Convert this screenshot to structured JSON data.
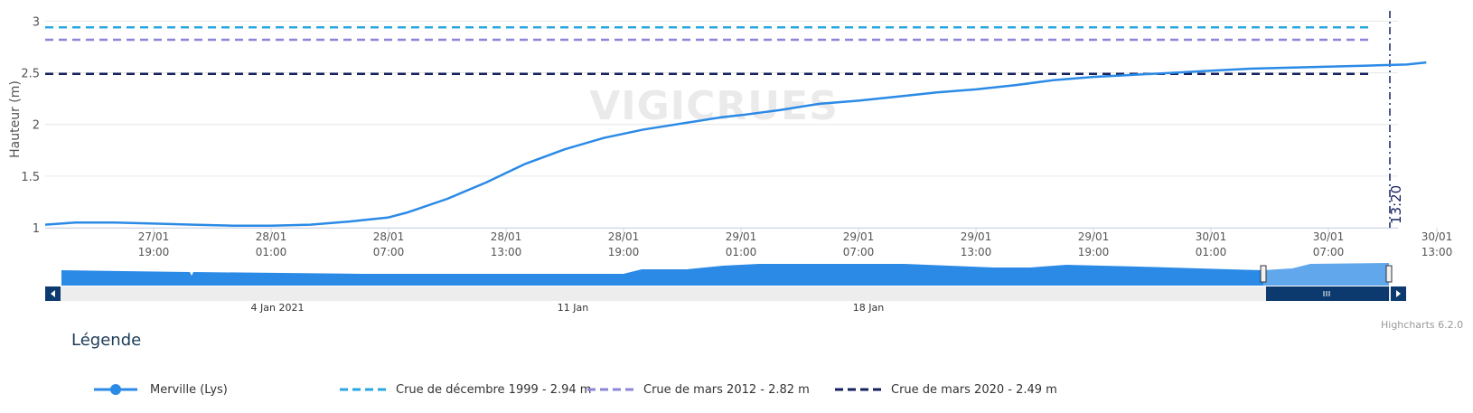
{
  "chart_data": {
    "type": "line",
    "ylabel": "Hauteur (m)",
    "ylim": [
      1,
      3.1
    ],
    "y_ticks": [
      "1",
      "1.5",
      "2",
      "2.5",
      "3"
    ],
    "x_ticks": [
      {
        "date": "27/01",
        "time": "19:00"
      },
      {
        "date": "28/01",
        "time": "01:00"
      },
      {
        "date": "28/01",
        "time": "07:00"
      },
      {
        "date": "28/01",
        "time": "13:00"
      },
      {
        "date": "28/01",
        "time": "19:00"
      },
      {
        "date": "29/01",
        "time": "01:00"
      },
      {
        "date": "29/01",
        "time": "07:00"
      },
      {
        "date": "29/01",
        "time": "13:00"
      },
      {
        "date": "29/01",
        "time": "19:00"
      },
      {
        "date": "30/01",
        "time": "01:00"
      },
      {
        "date": "30/01",
        "time": "07:00"
      },
      {
        "date": "30/01",
        "time": "13:00"
      }
    ],
    "current_time_label": "13:20",
    "watermark": "VIGICRUES",
    "series": [
      {
        "name": "Merville (Lys)",
        "color": "#2b8ae6",
        "x": [
          "2021-01-27T14:00",
          "2021-01-27T15:00",
          "2021-01-27T17:00",
          "2021-01-27T19:00",
          "2021-01-27T21:00",
          "2021-01-27T23:00",
          "2021-01-28T01:00",
          "2021-01-28T03:00",
          "2021-01-28T05:00",
          "2021-01-28T07:00",
          "2021-01-28T08:00",
          "2021-01-28T10:00",
          "2021-01-28T12:00",
          "2021-01-28T13:00",
          "2021-01-28T14:00",
          "2021-01-28T16:00",
          "2021-01-28T18:00",
          "2021-01-28T20:00",
          "2021-01-28T22:00",
          "2021-01-29T00:00",
          "2021-01-29T01:00",
          "2021-01-29T03:00",
          "2021-01-29T05:00",
          "2021-01-29T07:00",
          "2021-01-29T09:00",
          "2021-01-29T11:00",
          "2021-01-29T13:00",
          "2021-01-29T15:00",
          "2021-01-29T17:00",
          "2021-01-29T19:00",
          "2021-01-29T21:00",
          "2021-01-29T23:00",
          "2021-01-30T01:00",
          "2021-01-30T03:00",
          "2021-01-30T05:00",
          "2021-01-30T07:00",
          "2021-01-30T09:00",
          "2021-01-30T11:00",
          "2021-01-30T12:00"
        ],
        "values": [
          1.03,
          1.05,
          1.05,
          1.04,
          1.03,
          1.02,
          1.02,
          1.03,
          1.06,
          1.1,
          1.15,
          1.28,
          1.44,
          1.53,
          1.62,
          1.76,
          1.87,
          1.95,
          2.01,
          2.07,
          2.09,
          2.14,
          2.2,
          2.23,
          2.27,
          2.31,
          2.34,
          2.38,
          2.43,
          2.46,
          2.48,
          2.5,
          2.52,
          2.54,
          2.55,
          2.56,
          2.57,
          2.58,
          2.6
        ]
      }
    ],
    "thresholds": [
      {
        "name": "Crue de décembre 1999 - 2.94 m",
        "value": 2.94,
        "color": "#2aa7e0"
      },
      {
        "name": "Crue de mars 2012 - 2.82 m",
        "value": 2.82,
        "color": "#8b86d8"
      },
      {
        "name": "Crue de mars 2020 - 2.49 m",
        "value": 2.49,
        "color": "#14215e"
      }
    ],
    "navigator": {
      "labels": [
        "4 Jan 2021",
        "11 Jan",
        "18 Jan"
      ]
    },
    "credits": "Highcharts 6.2.0"
  },
  "legend": {
    "title": "Légende",
    "items": [
      {
        "label": "Merville (Lys)",
        "style": "line-marker",
        "color": "#2b8ae6"
      },
      {
        "label": "Crue de décembre 1999 - 2.94 m",
        "style": "dash",
        "color": "#2aa7e0"
      },
      {
        "label": "Crue de mars 2012 - 2.82 m",
        "style": "dash",
        "color": "#8b86d8"
      },
      {
        "label": "Crue de mars 2020 - 2.49 m",
        "style": "dash",
        "color": "#14215e"
      }
    ]
  }
}
